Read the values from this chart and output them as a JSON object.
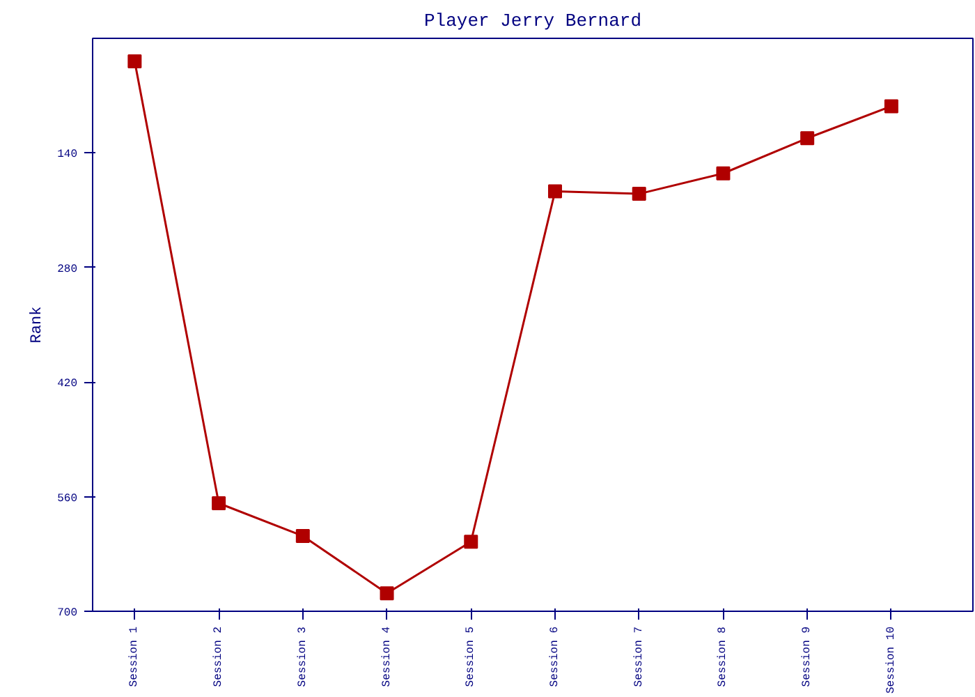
{
  "chart_data": {
    "type": "line",
    "title": "Player Jerry Bernard",
    "ylabel": "Rank",
    "categories": [
      "Session 1",
      "Session 2",
      "Session 3",
      "Session 4",
      "Session 5",
      "Session 6",
      "Session 7",
      "Session 8",
      "Session 9",
      "Session 10"
    ],
    "series": [
      {
        "color": "#b00000",
        "values": [
          28,
          568,
          608,
          678,
          615,
          187,
          190,
          165,
          122,
          83
        ]
      }
    ],
    "ylim": [
      700,
      0
    ],
    "yticks": [
      140,
      280,
      420,
      560,
      700
    ],
    "grid": false,
    "marker": "square",
    "line_style": "solid"
  }
}
